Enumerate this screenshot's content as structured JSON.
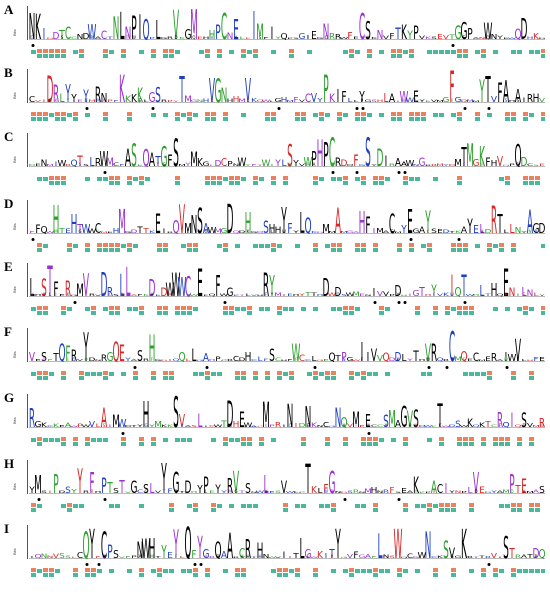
{
  "figure": {
    "panels": [
      {
        "label": "A"
      },
      {
        "label": "B"
      },
      {
        "label": "C"
      },
      {
        "label": "D"
      },
      {
        "label": "E"
      },
      {
        "label": "F"
      },
      {
        "label": "G"
      },
      {
        "label": "H"
      },
      {
        "label": "I"
      }
    ],
    "axis_label": "Bits",
    "colors": {
      "hydrophobic": "#000000",
      "acidic": "#d62728",
      "basic": "#1f3fbf",
      "polar": "#2ca02c",
      "amide": "#9b30d0",
      "bar_orange": "#e8825f",
      "bar_green": "#4ab89a",
      "dot": "#000000"
    }
  }
}
